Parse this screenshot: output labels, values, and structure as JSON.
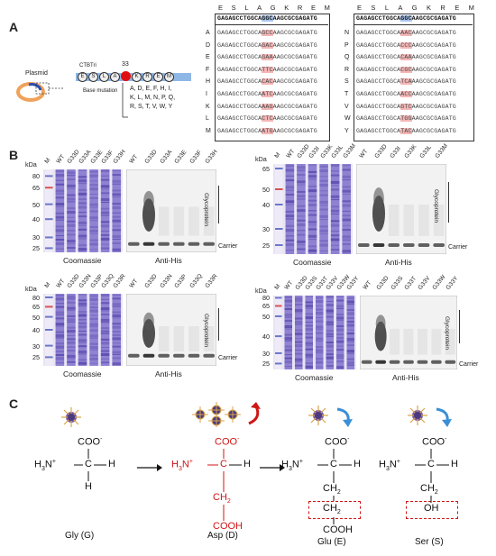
{
  "panel_labels": [
    "A",
    "B",
    "C"
  ],
  "panelA": {
    "plasmid_label": "Plasmid",
    "construct_label": "CTBTri",
    "construct_letters": [
      "E",
      "S",
      "L",
      "A",
      "G",
      "K",
      "R",
      "E",
      "M"
    ],
    "position_number": "33",
    "base_mutation_label": "Base mutation",
    "mutation_lines": [
      "A, D, E, F, H, I,",
      "K, L, M, N, P, Q,",
      "R, S, T, V, W, Y"
    ],
    "aa_header": [
      "E",
      "S",
      "L",
      "A",
      "G",
      "K",
      "R",
      "E",
      "M"
    ],
    "wt_seq": "GAGAGCCTGGCAGGCAAGCGCGAGATG",
    "left_rows": [
      {
        "label": "A",
        "seq": "GAGAGCCTGGCAGCCAAGCGCGAGATG"
      },
      {
        "label": "D",
        "seq": "GAGAGCCTGGCAGACAAGCGCGAGATG"
      },
      {
        "label": "E",
        "seq": "GAGAGCCTGGCAGAAAAGCGCGAGATG"
      },
      {
        "label": "F",
        "seq": "GAGAGCCTGGCATTCAAGCGCGAGATG"
      },
      {
        "label": "H",
        "seq": "GAGAGCCTGGCACACAAGCGCGAGATG"
      },
      {
        "label": "I",
        "seq": "GAGAGCCTGGCAATCAAGCGCGAGATG"
      },
      {
        "label": "K",
        "seq": "GAGAGCCTGGCAAAGAAGCGCGAGATG"
      },
      {
        "label": "L",
        "seq": "GAGAGCCTGGCACTCAAGCGCGAGATG"
      },
      {
        "label": "M",
        "seq": "GAGAGCCTGGCAATGAAGCGCGAGATG"
      }
    ],
    "right_rows": [
      {
        "label": "N",
        "seq": "GAGAGCCTGGCAAACAAGCGCGAGATG"
      },
      {
        "label": "P",
        "seq": "GAGAGCCTGGCACCCAAGCGCGAGATG"
      },
      {
        "label": "Q",
        "seq": "GAGAGCCTGGCACAAAAGCGCGAGATG"
      },
      {
        "label": "R",
        "seq": "GAGAGCCTGGCACGCAAGCGCGAGATG"
      },
      {
        "label": "S",
        "seq": "GAGAGCCTGGCATCAAAGCGCGAGATG"
      },
      {
        "label": "T",
        "seq": "GAGAGCCTGGCAACCAAGCGCGAGATG"
      },
      {
        "label": "V",
        "seq": "GAGAGCCTGGCAGTCAAGCGCGAGATG"
      },
      {
        "label": "W",
        "seq": "GAGAGCCTGGCATGGAAGCGCGAGATG"
      },
      {
        "label": "Y",
        "seq": "GAGAGCCTGGCATACAAGCGCGAGATG"
      }
    ]
  },
  "panelB": {
    "kda_label": "kDa",
    "coomassie_label": "Coomassie",
    "antihis_label": "Anti-His",
    "glyco_label": "Glycoprotein",
    "carrier_label": "Carrier",
    "gels": [
      {
        "kda": [
          "80",
          "65",
          "50",
          "40",
          "30",
          "25"
        ],
        "coom_lanes": [
          "M",
          "WT",
          "G33D",
          "G33A",
          "G33E",
          "G33F",
          "G33H"
        ],
        "his_lanes": [
          "WT",
          "G33D",
          "G33A",
          "G33E",
          "G33F",
          "G33H"
        ]
      },
      {
        "kda": [
          "65",
          "50",
          "40",
          "30",
          "25"
        ],
        "coom_lanes": [
          "M",
          "WT",
          "G33D",
          "G33I",
          "G33K",
          "G33L",
          "G33M"
        ],
        "his_lanes": [
          "WT",
          "G33D",
          "G33I",
          "G33K",
          "G33L",
          "G33M"
        ]
      },
      {
        "kda": [
          "80",
          "65",
          "50",
          "40",
          "30",
          "25"
        ],
        "coom_lanes": [
          "M",
          "WT",
          "G33D",
          "G33N",
          "G33P",
          "G33Q",
          "G33R"
        ],
        "his_lanes": [
          "WT",
          "G33D",
          "G33N",
          "G33P",
          "G33Q",
          "G33R"
        ]
      },
      {
        "kda": [
          "80",
          "65",
          "50",
          "40",
          "30",
          "25"
        ],
        "coom_lanes": [
          "M",
          "WT",
          "G33D",
          "G33S",
          "G33T",
          "G33V",
          "G33W",
          "G33Y"
        ],
        "his_lanes": [
          "WT",
          "G33D",
          "G33S",
          "G33T",
          "G33V",
          "G33W",
          "G33Y"
        ]
      }
    ]
  },
  "panelC": {
    "coo": "COO",
    "minus": "-",
    "h3n": "H",
    "three": "3",
    "nplus": "N",
    "plus": "+",
    "c": "C",
    "h": "H",
    "ch": "CH",
    "two": "2",
    "cooh": "COOH",
    "oh": "OH",
    "names": [
      "Gly  (G)",
      "Asp  (D)",
      "Glu  (E)",
      "Ser  (S)"
    ]
  },
  "colors": {
    "highlight": "#f4b6b6",
    "wt_highlight": "#a9c6ee",
    "coomassie": "#6f5fc4",
    "red": "#d01515",
    "arrow_blue": "#3b8fd6"
  }
}
